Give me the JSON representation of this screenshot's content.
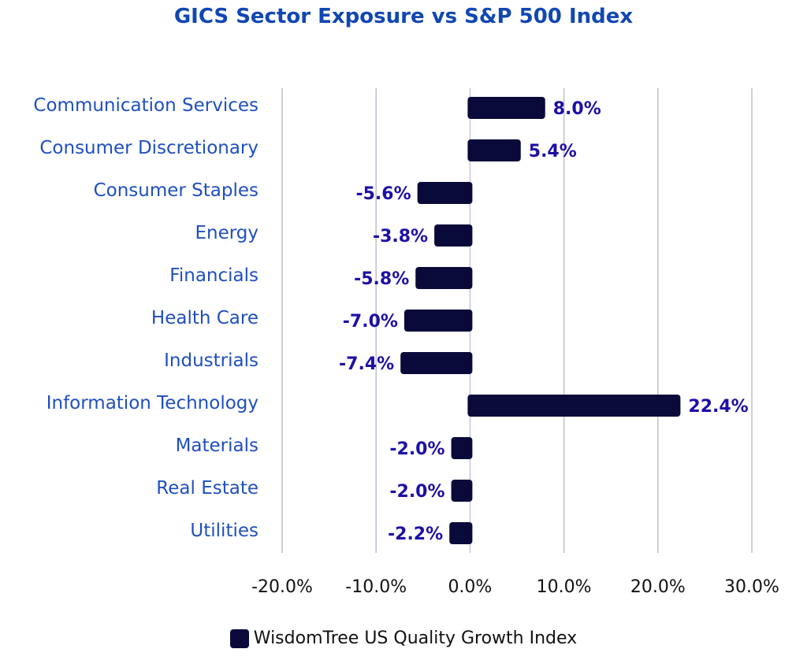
{
  "colors": {
    "title": "#1147b3",
    "bar": "#0a0a3a",
    "category_label": "#1f4fbf",
    "data_label": "#1d0fa6",
    "grid": "#b8c0cc",
    "zero_line": "#c9c2f0"
  },
  "chart_data": {
    "type": "bar",
    "orientation": "horizontal",
    "title": "GICS Sector Exposure vs S&P 500 Index",
    "categories": [
      "Communication Services",
      "Consumer Discretionary",
      "Consumer Staples",
      "Energy",
      "Financials",
      "Health Care",
      "Industrials",
      "Information Technology",
      "Materials",
      "Real Estate",
      "Utilities"
    ],
    "series": [
      {
        "name": "WisdomTree US Quality Growth Index",
        "values": [
          8.0,
          5.4,
          -5.6,
          -3.8,
          -5.8,
          -7.0,
          -7.4,
          22.4,
          -2.0,
          -2.0,
          -2.2
        ]
      }
    ],
    "data_labels": [
      "8.0%",
      "5.4%",
      "-5.6%",
      "-3.8%",
      "-5.8%",
      "-7.0%",
      "-7.4%",
      "22.4%",
      "-2.0%",
      "-2.0%",
      "-2.2%"
    ],
    "xlim": [
      -20,
      30
    ],
    "xticks": [
      -20,
      -10,
      0,
      10,
      20,
      30
    ],
    "xtick_labels": [
      "-20.0%",
      "-10.0%",
      "0.0%",
      "10.0%",
      "20.0%",
      "30.0%"
    ],
    "grid": true,
    "legend_position": "bottom"
  }
}
